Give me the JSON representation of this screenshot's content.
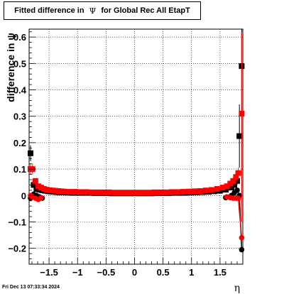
{
  "title": {
    "prefix": "Fitted difference in ",
    "symbol": "Ψ",
    "suffix": " for Global Rec All EtapT"
  },
  "timestamp": "Fri Dec 13 07:33:34 2024",
  "colors": {
    "black_series": "#000000",
    "red_series": "#ff0000",
    "grid": "#000000"
  },
  "chart_data": {
    "type": "scatter",
    "xlabel": "η",
    "ylabel": "difference in ψ",
    "xlim": [
      -1.85,
      1.9
    ],
    "ylim": [
      -0.26,
      0.63
    ],
    "xticks": [
      -1.5,
      -1,
      -0.5,
      0,
      0.5,
      1,
      1.5
    ],
    "xtick_labels": [
      "−1.5",
      "−1",
      "−0.5",
      "0",
      "0.5",
      "1",
      "1.5"
    ],
    "yticks": [
      -0.2,
      -0.1,
      0,
      0.1,
      0.2,
      0.3,
      0.4,
      0.5,
      0.6
    ],
    "ytick_labels": [
      "−0.2",
      "−0.1",
      "0",
      "0.1",
      "0.2",
      "0.3",
      "0.4",
      "0.5",
      "0.6"
    ],
    "grid": true,
    "series": [
      {
        "color": "#000000",
        "mean_points": [
          {
            "x": -1.825,
            "y": 0.16,
            "err": 0.03
          },
          {
            "x": -1.77,
            "y": 0.04,
            "err": 0.01
          },
          {
            "x": -1.72,
            "y": 0.025,
            "err": 0.008
          },
          {
            "x": -1.67,
            "y": 0.022,
            "err": 0.006
          },
          {
            "x": -1.62,
            "y": 0.02,
            "err": 0.005
          },
          {
            "x": -1.57,
            "y": 0.018,
            "err": 0.005
          },
          {
            "x": -1.52,
            "y": 0.016,
            "err": 0.004
          },
          {
            "x": -1.47,
            "y": 0.015,
            "err": 0.004
          },
          {
            "x": -1.42,
            "y": 0.014,
            "err": 0.004
          },
          {
            "x": -1.37,
            "y": 0.013,
            "err": 0.004
          },
          {
            "x": -1.32,
            "y": 0.012,
            "err": 0.004
          },
          {
            "x": -1.27,
            "y": 0.012,
            "err": 0.004
          },
          {
            "x": -1.2,
            "y": 0.011,
            "err": 0.004
          },
          {
            "x": -1.1,
            "y": 0.01,
            "err": 0.004
          },
          {
            "x": -1.0,
            "y": 0.01,
            "err": 0.004
          },
          {
            "x": -0.9,
            "y": 0.01,
            "err": 0.004
          },
          {
            "x": -0.8,
            "y": 0.01,
            "err": 0.004
          },
          {
            "x": -0.7,
            "y": 0.009,
            "err": 0.004
          },
          {
            "x": -0.6,
            "y": 0.009,
            "err": 0.004
          },
          {
            "x": -0.5,
            "y": 0.009,
            "err": 0.004
          },
          {
            "x": -0.4,
            "y": 0.008,
            "err": 0.004
          },
          {
            "x": -0.3,
            "y": 0.008,
            "err": 0.004
          },
          {
            "x": -0.2,
            "y": 0.008,
            "err": 0.004
          },
          {
            "x": -0.1,
            "y": 0.008,
            "err": 0.004
          },
          {
            "x": 0.0,
            "y": 0.008,
            "err": 0.004
          },
          {
            "x": 0.1,
            "y": 0.008,
            "err": 0.004
          },
          {
            "x": 0.2,
            "y": 0.008,
            "err": 0.004
          },
          {
            "x": 0.3,
            "y": 0.008,
            "err": 0.004
          },
          {
            "x": 0.4,
            "y": 0.009,
            "err": 0.004
          },
          {
            "x": 0.5,
            "y": 0.009,
            "err": 0.004
          },
          {
            "x": 0.6,
            "y": 0.009,
            "err": 0.004
          },
          {
            "x": 0.7,
            "y": 0.01,
            "err": 0.004
          },
          {
            "x": 0.8,
            "y": 0.01,
            "err": 0.004
          },
          {
            "x": 0.9,
            "y": 0.01,
            "err": 0.004
          },
          {
            "x": 1.0,
            "y": 0.011,
            "err": 0.004
          },
          {
            "x": 1.1,
            "y": 0.012,
            "err": 0.004
          },
          {
            "x": 1.2,
            "y": 0.013,
            "err": 0.004
          },
          {
            "x": 1.3,
            "y": 0.014,
            "err": 0.004
          },
          {
            "x": 1.4,
            "y": 0.016,
            "err": 0.004
          },
          {
            "x": 1.5,
            "y": 0.018,
            "err": 0.005
          },
          {
            "x": 1.6,
            "y": 0.022,
            "err": 0.006
          },
          {
            "x": 1.7,
            "y": 0.03,
            "err": 0.01
          },
          {
            "x": 1.75,
            "y": 0.04,
            "err": 0.01
          },
          {
            "x": 1.8,
            "y": 0.055,
            "err": 0.015
          },
          {
            "x": 1.84,
            "y": 0.225,
            "err": 0.12
          },
          {
            "x": 1.88,
            "y": 0.49,
            "err": 0.2
          }
        ],
        "width_points": [
          {
            "x": -1.825,
            "y": -0.01
          },
          {
            "x": -1.77,
            "y": 0.005
          },
          {
            "x": -1.72,
            "y": 0.0
          },
          {
            "x": -1.67,
            "y": -0.005
          },
          {
            "x": -1.62,
            "y": -0.01
          },
          {
            "x": 1.6,
            "y": -0.008
          },
          {
            "x": 1.7,
            "y": 0.0
          },
          {
            "x": 1.75,
            "y": 0.01
          },
          {
            "x": 1.8,
            "y": 0.02
          },
          {
            "x": 1.84,
            "y": 0.0
          },
          {
            "x": 1.88,
            "y": -0.205
          }
        ]
      },
      {
        "color": "#ff0000",
        "mean_points": [
          {
            "x": -1.825,
            "y": 0.1,
            "err": 0.02
          },
          {
            "x": -1.79,
            "y": 0.1,
            "err": 0.02
          },
          {
            "x": -1.74,
            "y": 0.055,
            "err": 0.01
          },
          {
            "x": -1.69,
            "y": 0.035,
            "err": 0.008
          },
          {
            "x": -1.64,
            "y": 0.03,
            "err": 0.006
          },
          {
            "x": -1.59,
            "y": 0.025,
            "err": 0.005
          },
          {
            "x": -1.54,
            "y": 0.022,
            "err": 0.005
          },
          {
            "x": -1.49,
            "y": 0.02,
            "err": 0.004
          },
          {
            "x": -1.44,
            "y": 0.019,
            "err": 0.004
          },
          {
            "x": -1.39,
            "y": 0.018,
            "err": 0.004
          },
          {
            "x": -1.34,
            "y": 0.017,
            "err": 0.004
          },
          {
            "x": -1.29,
            "y": 0.016,
            "err": 0.004
          },
          {
            "x": -1.24,
            "y": 0.015,
            "err": 0.004
          },
          {
            "x": -1.15,
            "y": 0.014,
            "err": 0.004
          },
          {
            "x": -1.05,
            "y": 0.014,
            "err": 0.004
          },
          {
            "x": -0.95,
            "y": 0.013,
            "err": 0.004
          },
          {
            "x": -0.85,
            "y": 0.013,
            "err": 0.004
          },
          {
            "x": -0.75,
            "y": 0.012,
            "err": 0.004
          },
          {
            "x": -0.65,
            "y": 0.012,
            "err": 0.004
          },
          {
            "x": -0.55,
            "y": 0.012,
            "err": 0.004
          },
          {
            "x": -0.45,
            "y": 0.012,
            "err": 0.004
          },
          {
            "x": -0.35,
            "y": 0.011,
            "err": 0.004
          },
          {
            "x": -0.25,
            "y": 0.011,
            "err": 0.004
          },
          {
            "x": -0.15,
            "y": 0.011,
            "err": 0.004
          },
          {
            "x": -0.05,
            "y": 0.011,
            "err": 0.004
          },
          {
            "x": 0.05,
            "y": 0.011,
            "err": 0.004
          },
          {
            "x": 0.15,
            "y": 0.011,
            "err": 0.004
          },
          {
            "x": 0.25,
            "y": 0.011,
            "err": 0.004
          },
          {
            "x": 0.35,
            "y": 0.012,
            "err": 0.004
          },
          {
            "x": 0.45,
            "y": 0.012,
            "err": 0.004
          },
          {
            "x": 0.55,
            "y": 0.012,
            "err": 0.004
          },
          {
            "x": 0.65,
            "y": 0.013,
            "err": 0.004
          },
          {
            "x": 0.75,
            "y": 0.013,
            "err": 0.004
          },
          {
            "x": 0.85,
            "y": 0.014,
            "err": 0.004
          },
          {
            "x": 0.95,
            "y": 0.015,
            "err": 0.004
          },
          {
            "x": 1.05,
            "y": 0.016,
            "err": 0.004
          },
          {
            "x": 1.15,
            "y": 0.017,
            "err": 0.004
          },
          {
            "x": 1.25,
            "y": 0.019,
            "err": 0.004
          },
          {
            "x": 1.35,
            "y": 0.021,
            "err": 0.005
          },
          {
            "x": 1.45,
            "y": 0.025,
            "err": 0.005
          },
          {
            "x": 1.55,
            "y": 0.03,
            "err": 0.006
          },
          {
            "x": 1.62,
            "y": 0.035,
            "err": 0.008
          },
          {
            "x": 1.68,
            "y": 0.045,
            "err": 0.01
          },
          {
            "x": 1.73,
            "y": 0.055,
            "err": 0.012
          },
          {
            "x": 1.78,
            "y": 0.07,
            "err": 0.015
          },
          {
            "x": 1.82,
            "y": 0.085,
            "err": 0.02
          },
          {
            "x": 1.88,
            "y": 0.31,
            "err": 0.3
          }
        ],
        "width_points": [
          {
            "x": -1.825,
            "y": 0.0
          },
          {
            "x": -1.79,
            "y": -0.005
          },
          {
            "x": -1.74,
            "y": -0.01
          },
          {
            "x": -1.69,
            "y": -0.015
          },
          {
            "x": -1.64,
            "y": -0.008
          },
          {
            "x": 1.62,
            "y": -0.005
          },
          {
            "x": 1.68,
            "y": -0.008
          },
          {
            "x": 1.73,
            "y": -0.01
          },
          {
            "x": 1.78,
            "y": -0.01
          },
          {
            "x": 1.82,
            "y": -0.01
          },
          {
            "x": 1.88,
            "y": -0.16
          }
        ]
      }
    ]
  }
}
